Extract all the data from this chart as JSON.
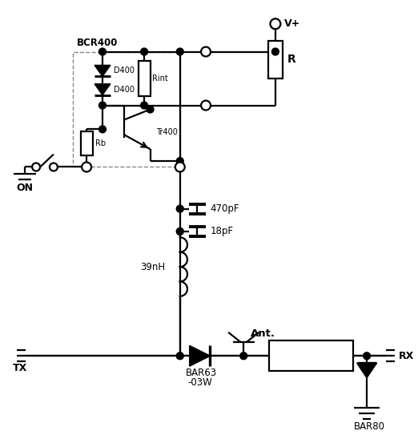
{
  "background_color": "#ffffff",
  "line_color": "#000000",
  "figsize": [
    5.22,
    5.48
  ],
  "dpi": 100,
  "xlim": [
    0,
    10.44
  ],
  "ylim": [
    0,
    10.96
  ]
}
